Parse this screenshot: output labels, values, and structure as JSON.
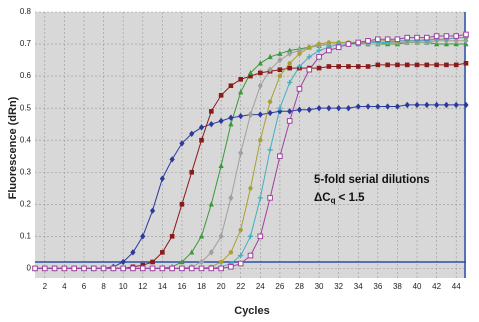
{
  "chart_data": {
    "type": "line",
    "ylabel": "Fluorescence (dRn)",
    "xlabel": "Cycles",
    "annotation": {
      "line1": "5-fold serial dilutions",
      "symbol": "ΔC",
      "subscript": "q",
      "rest": " < 1.5"
    },
    "x": [
      1,
      2,
      3,
      4,
      5,
      6,
      7,
      8,
      9,
      10,
      11,
      12,
      13,
      14,
      15,
      16,
      17,
      18,
      19,
      20,
      21,
      22,
      23,
      24,
      25,
      26,
      27,
      28,
      29,
      30,
      31,
      32,
      33,
      34,
      35,
      36,
      37,
      38,
      39,
      40,
      41,
      42,
      43,
      44,
      45
    ],
    "xlim": [
      1,
      45
    ],
    "xticks": [
      2,
      4,
      6,
      8,
      10,
      12,
      14,
      16,
      18,
      20,
      22,
      24,
      26,
      28,
      30,
      32,
      34,
      36,
      38,
      40,
      42,
      44
    ],
    "ylim": [
      -0.03,
      0.8
    ],
    "yticks": [
      0,
      0.1,
      0.2,
      0.3,
      0.4,
      0.5,
      0.6,
      0.7,
      0.8
    ],
    "grid": true,
    "threshold": 0.02,
    "threshold_color": "#2e4ea8",
    "series": [
      {
        "color": "#2b3a9b",
        "marker": "diamond",
        "values": [
          0,
          0,
          0,
          0,
          0,
          0,
          0,
          0,
          0.005,
          0.02,
          0.05,
          0.1,
          0.18,
          0.28,
          0.34,
          0.39,
          0.42,
          0.44,
          0.45,
          0.46,
          0.47,
          0.475,
          0.48,
          0.48,
          0.485,
          0.49,
          0.49,
          0.495,
          0.495,
          0.5,
          0.5,
          0.5,
          0.5,
          0.505,
          0.505,
          0.505,
          0.505,
          0.505,
          0.51,
          0.51,
          0.51,
          0.51,
          0.51,
          0.51,
          0.51
        ]
      },
      {
        "color": "#8b1a1a",
        "marker": "square",
        "values": [
          0,
          0,
          0,
          0,
          0,
          0,
          0,
          0,
          0,
          0,
          0.005,
          0.01,
          0.02,
          0.05,
          0.1,
          0.2,
          0.3,
          0.4,
          0.49,
          0.54,
          0.57,
          0.59,
          0.6,
          0.61,
          0.615,
          0.62,
          0.625,
          0.625,
          0.625,
          0.625,
          0.63,
          0.63,
          0.63,
          0.63,
          0.63,
          0.635,
          0.635,
          0.635,
          0.635,
          0.635,
          0.635,
          0.635,
          0.635,
          0.635,
          0.64
        ]
      },
      {
        "color": "#3a9a3a",
        "marker": "triangle",
        "values": [
          0,
          0,
          0,
          0,
          0,
          0,
          0,
          0,
          0,
          0,
          0,
          0,
          0,
          0,
          0.005,
          0.02,
          0.05,
          0.1,
          0.2,
          0.32,
          0.45,
          0.55,
          0.61,
          0.64,
          0.66,
          0.67,
          0.68,
          0.685,
          0.69,
          0.695,
          0.7,
          0.7,
          0.7,
          0.7,
          0.7,
          0.7,
          0.7,
          0.7,
          0.705,
          0.705,
          0.705,
          0.7,
          0.7,
          0.7,
          0.7
        ]
      },
      {
        "color": "#a0a0a0",
        "marker": "diamond",
        "values": [
          0,
          0,
          0,
          0,
          0,
          0,
          0,
          0,
          0,
          0,
          0,
          0,
          0,
          0,
          0,
          0,
          0.005,
          0.02,
          0.05,
          0.1,
          0.22,
          0.36,
          0.48,
          0.57,
          0.62,
          0.65,
          0.67,
          0.68,
          0.69,
          0.695,
          0.7,
          0.7,
          0.7,
          0.7,
          0.7,
          0.7,
          0.705,
          0.705,
          0.705,
          0.705,
          0.705,
          0.71,
          0.71,
          0.71,
          0.71
        ]
      },
      {
        "color": "#a8a030",
        "marker": "circle",
        "values": [
          0,
          0,
          0,
          0,
          0,
          0,
          0,
          0,
          0,
          0,
          0,
          0,
          0,
          0,
          0,
          0,
          0,
          0,
          0.005,
          0.02,
          0.05,
          0.12,
          0.25,
          0.4,
          0.52,
          0.6,
          0.64,
          0.67,
          0.69,
          0.7,
          0.705,
          0.705,
          0.705,
          0.705,
          0.705,
          0.71,
          0.71,
          0.71,
          0.71,
          0.71,
          0.715,
          0.715,
          0.715,
          0.72,
          0.72
        ]
      },
      {
        "color": "#40b0c0",
        "marker": "plus",
        "values": [
          0,
          0,
          0,
          0,
          0,
          0,
          0,
          0,
          0,
          0,
          0,
          0,
          0,
          0,
          0,
          0,
          0,
          0,
          0,
          0.005,
          0.015,
          0.04,
          0.1,
          0.22,
          0.37,
          0.5,
          0.58,
          0.63,
          0.66,
          0.68,
          0.69,
          0.7,
          0.7,
          0.7,
          0.705,
          0.705,
          0.705,
          0.71,
          0.71,
          0.71,
          0.71,
          0.715,
          0.715,
          0.72,
          0.72
        ]
      },
      {
        "color": "#a040a0",
        "marker": "open-square",
        "values": [
          0,
          0,
          0,
          0,
          0,
          0,
          0,
          0,
          0,
          0,
          0,
          0,
          0,
          0,
          0,
          0,
          0,
          0,
          0,
          0,
          0.005,
          0.015,
          0.04,
          0.1,
          0.22,
          0.35,
          0.46,
          0.56,
          0.62,
          0.66,
          0.68,
          0.69,
          0.7,
          0.705,
          0.71,
          0.715,
          0.715,
          0.715,
          0.72,
          0.72,
          0.72,
          0.725,
          0.725,
          0.725,
          0.73
        ]
      }
    ]
  }
}
